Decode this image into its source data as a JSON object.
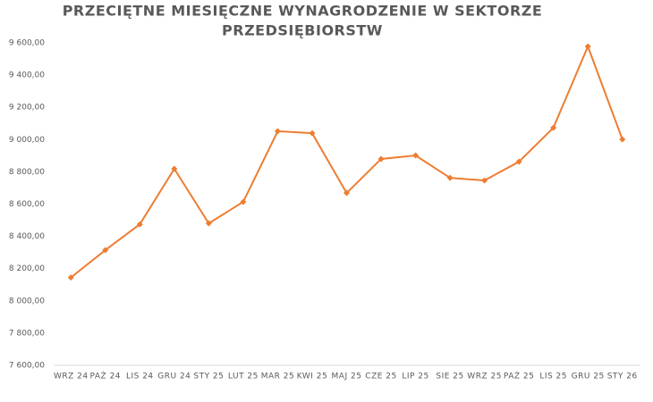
{
  "chart_data": {
    "type": "line",
    "title": [
      "PRZECIĘTNE MIESIĘCZNE WYNAGRODZENIE W SEKTORZE",
      "PRZEDSIĘBIORSTW"
    ],
    "categories": [
      "WRZ 24",
      "PAŹ 24",
      "LIS 24",
      "GRU 24",
      "STY 25",
      "LUT 25",
      "MAR 25",
      "KWI 25",
      "MAJ 25",
      "CZE 25",
      "LIP 25",
      "SIE 25",
      "WRZ 25",
      "PAŹ 25",
      "LIS 25",
      "GRU 25",
      "STY 26"
    ],
    "values": [
      8145,
      8315,
      8475,
      8819,
      8481,
      8614,
      9052,
      9040,
      8669,
      8880,
      8902,
      8763,
      8747,
      8863,
      9074,
      9578,
      9002
    ],
    "color": "#ed7d31",
    "ylim": [
      7600,
      9600
    ],
    "yticks": [
      {
        "value": 7600,
        "label": "7 600,00"
      },
      {
        "value": 7800,
        "label": "7 800,00"
      },
      {
        "value": 8000,
        "label": "8 000,00"
      },
      {
        "value": 8200,
        "label": "8 200,00"
      },
      {
        "value": 8400,
        "label": "8 400,00"
      },
      {
        "value": 8600,
        "label": "8 600,00"
      },
      {
        "value": 8800,
        "label": "8 800,00"
      },
      {
        "value": 9000,
        "label": "9 000,00"
      },
      {
        "value": 9200,
        "label": "9 200,00"
      },
      {
        "value": 9400,
        "label": "9 400,00"
      },
      {
        "value": 9600,
        "label": "9 600,00"
      }
    ],
    "grid": false
  }
}
